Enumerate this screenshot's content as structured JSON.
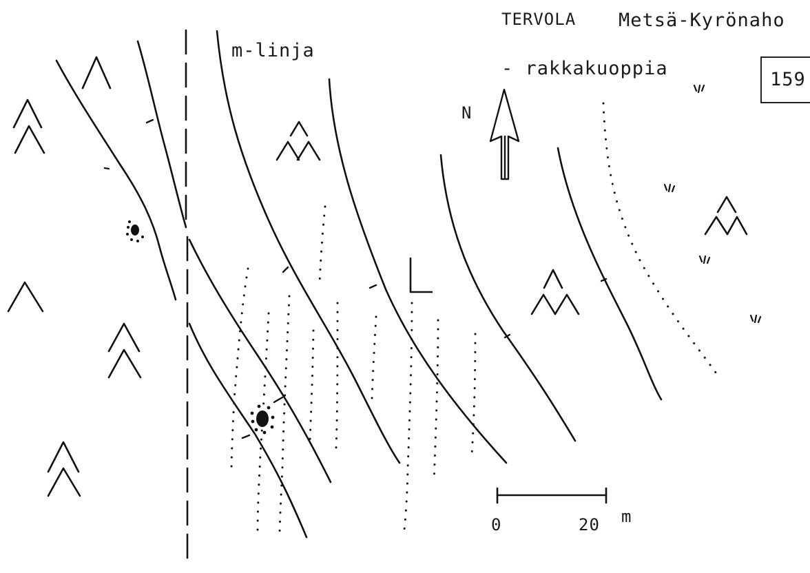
{
  "title": {
    "place": "TERVOLA",
    "site": "Metsä-Kyrönaho"
  },
  "subtitle": "- rakkakuoppia",
  "map_number": "159",
  "line_label": "m-linja",
  "north_label": "N",
  "scale_bar": {
    "start": "0",
    "end": "20",
    "unit": "m"
  },
  "symbols": {
    "conifer_forest": "double-chevron-icon",
    "forest": "chevron-icon",
    "mixed_forest": "triple-chevron-icon",
    "open_land": "tick-marks-icon",
    "pit": "blob-icon",
    "field_corner": "L-mark"
  },
  "colors": {
    "ink": "#111111",
    "paper": "#ffffff"
  }
}
